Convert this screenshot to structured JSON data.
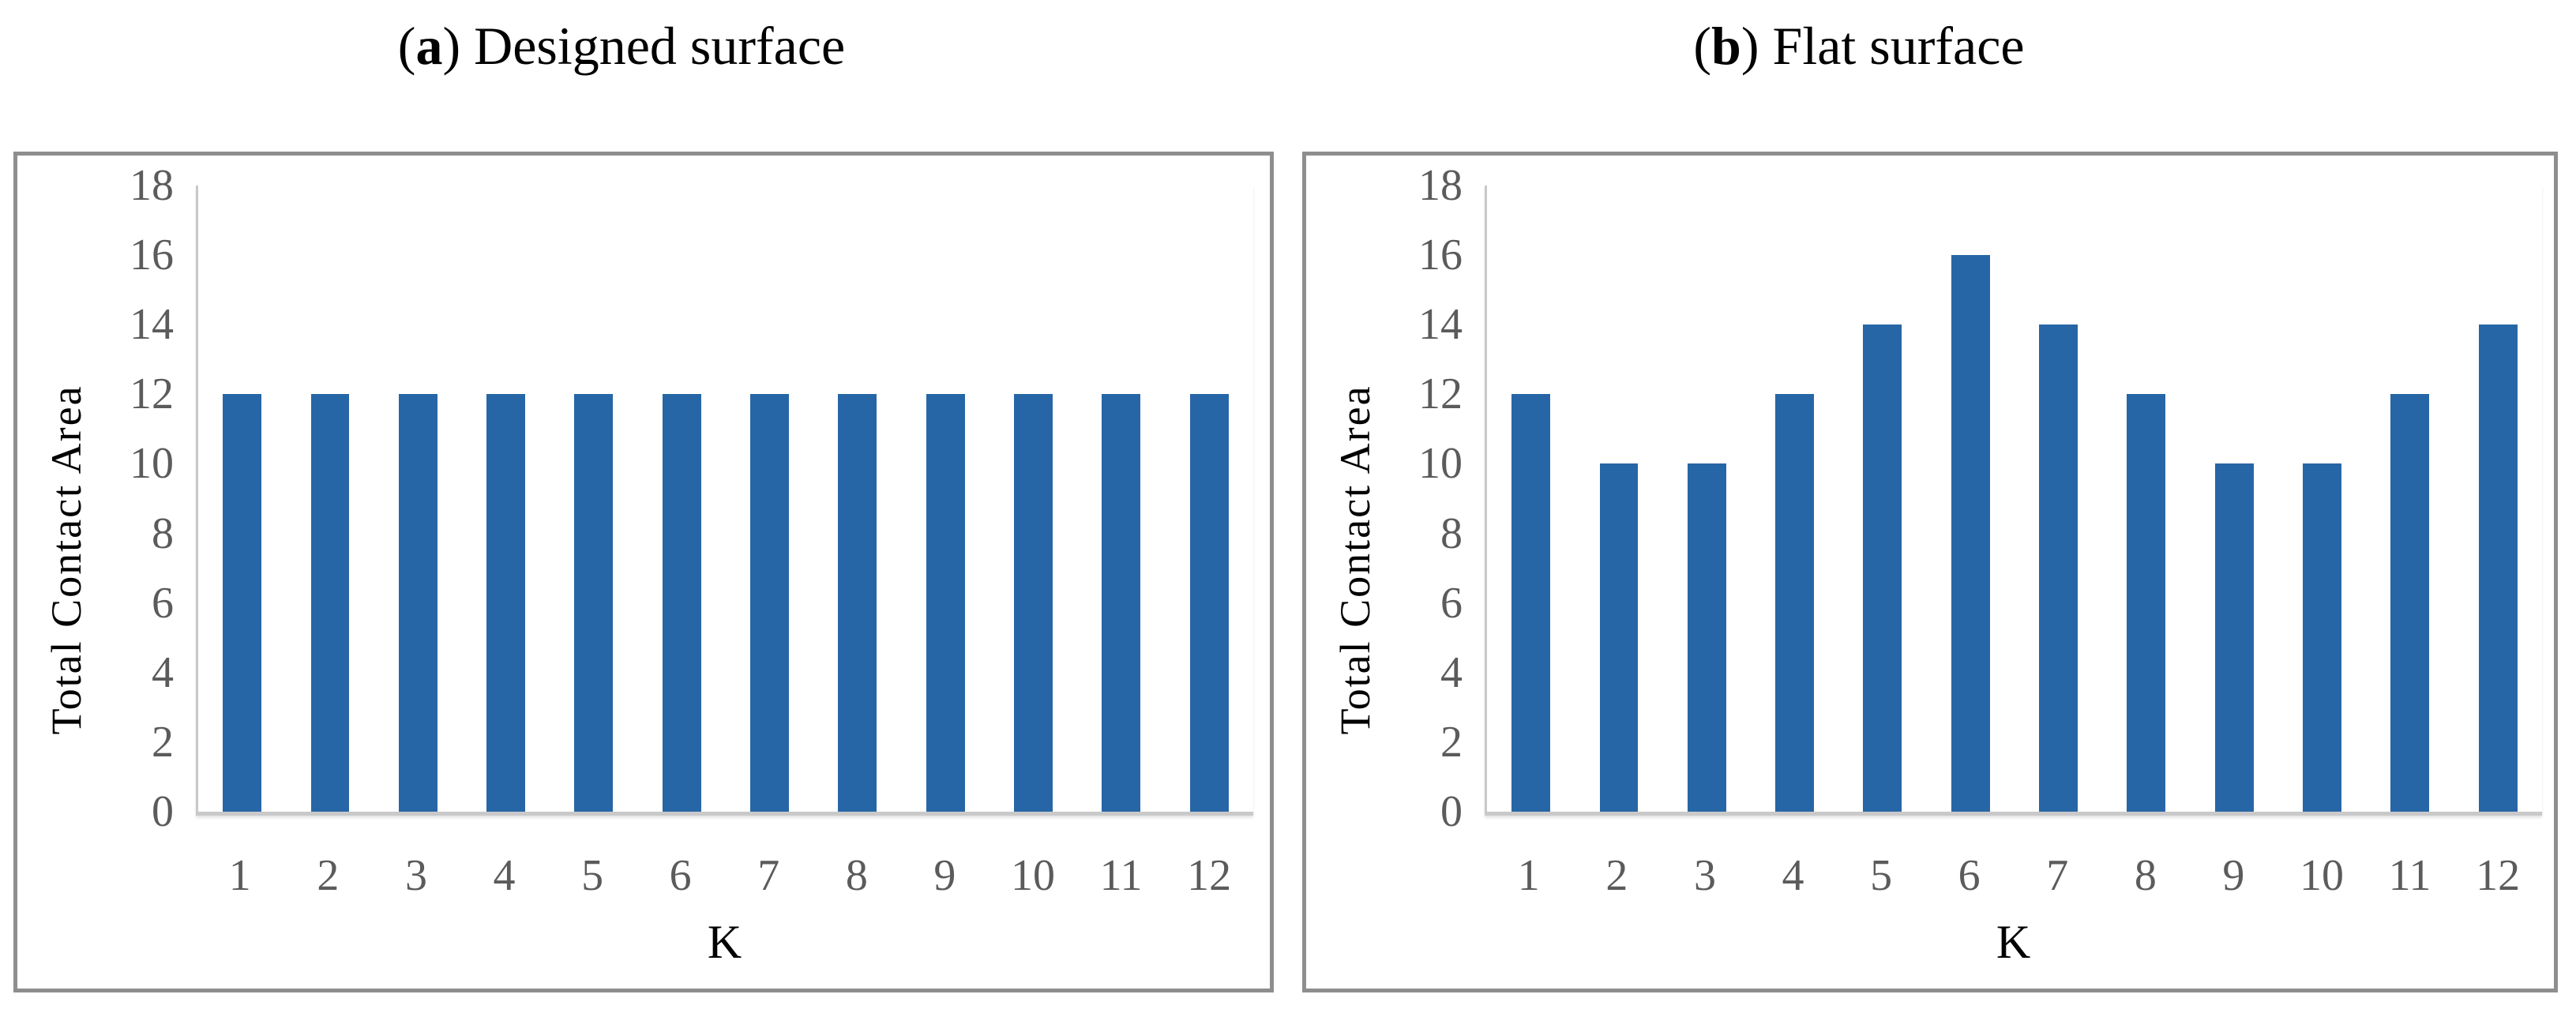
{
  "figure": {
    "background_color": "#ffffff",
    "panel_border_color": "#8e8e8e",
    "axis_line_color": "#c8c8c8",
    "tick_text_color": "#5b5b5b",
    "title_text_color": "#000000"
  },
  "chart_data": [
    {
      "type": "bar",
      "title": "(a) Designed surface",
      "title_parts": {
        "open": "(",
        "letter": "a",
        "rest": ") Designed surface"
      },
      "categories": [
        "1",
        "2",
        "3",
        "4",
        "5",
        "6",
        "7",
        "8",
        "9",
        "10",
        "11",
        "12"
      ],
      "values": [
        12,
        12,
        12,
        12,
        12,
        12,
        12,
        12,
        12,
        12,
        12,
        12
      ],
      "xlabel": "K",
      "ylabel": "Total Contact Area",
      "ylim": [
        0,
        18
      ],
      "ytick_step": 2,
      "yticks": [
        0,
        2,
        4,
        6,
        8,
        10,
        12,
        14,
        16,
        18
      ],
      "bar_color": "#2766a6",
      "grid": false,
      "legend": "none"
    },
    {
      "type": "bar",
      "title": "(b) Flat surface",
      "title_parts": {
        "open": "(",
        "letter": "b",
        "rest": ") Flat surface"
      },
      "categories": [
        "1",
        "2",
        "3",
        "4",
        "5",
        "6",
        "7",
        "8",
        "9",
        "10",
        "11",
        "12"
      ],
      "values": [
        12,
        10,
        10,
        12,
        14,
        16,
        14,
        12,
        10,
        10,
        12,
        14
      ],
      "xlabel": "K",
      "ylabel": "Total Contact Area",
      "ylim": [
        0,
        18
      ],
      "ytick_step": 2,
      "yticks": [
        0,
        2,
        4,
        6,
        8,
        10,
        12,
        14,
        16,
        18
      ],
      "bar_color": "#2766a6",
      "grid": false,
      "legend": "none"
    }
  ]
}
